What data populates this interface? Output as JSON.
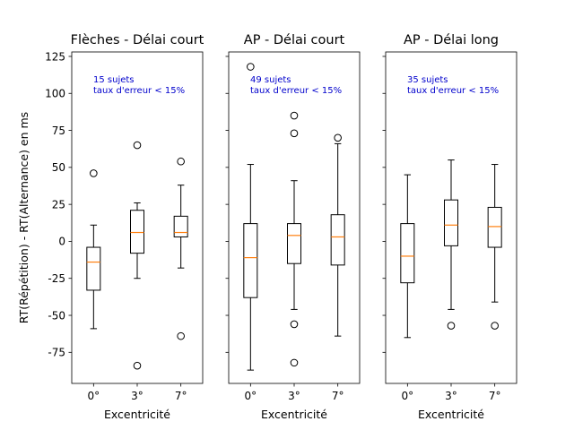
{
  "figure": {
    "ylabel": "RT(Répétition) - RT(Alternance) en ms",
    "annotation_color": "#0000cc",
    "median_color": "#ff7f0e",
    "box_color": "#000000"
  },
  "chart_data": [
    {
      "type": "boxplot",
      "title": "Flèches - Délai court",
      "xlabel": "Excentricité",
      "ylabel": "RT(Répétition) - RT(Alternance) en ms",
      "categories": [
        "0°",
        "3°",
        "7°"
      ],
      "ylim": [
        -96,
        128
      ],
      "yticks": [
        -75,
        -50,
        -25,
        0,
        25,
        50,
        75,
        100,
        125
      ],
      "annotation": [
        "15 sujets",
        "taux d'erreur < 15%"
      ],
      "boxes": [
        {
          "category": "0°",
          "whisker_low": -59,
          "q1": -33,
          "median": -14,
          "q3": -4,
          "whisker_high": 11,
          "outliers": [
            46
          ]
        },
        {
          "category": "3°",
          "whisker_low": -25,
          "q1": -8,
          "median": 6,
          "q3": 21,
          "whisker_high": 26,
          "outliers": [
            65,
            -84
          ]
        },
        {
          "category": "7°",
          "whisker_low": -18,
          "q1": 3,
          "median": 6,
          "q3": 17,
          "whisker_high": 38,
          "outliers": [
            54,
            -64
          ]
        }
      ]
    },
    {
      "type": "boxplot",
      "title": "AP - Délai court",
      "xlabel": "Excentricité",
      "categories": [
        "0°",
        "3°",
        "7°"
      ],
      "ylim": [
        -96,
        128
      ],
      "annotation": [
        "49 sujets",
        "taux d'erreur < 15%"
      ],
      "boxes": [
        {
          "category": "0°",
          "whisker_low": -87,
          "q1": -38,
          "median": -11,
          "q3": 12,
          "whisker_high": 52,
          "outliers": [
            118
          ]
        },
        {
          "category": "3°",
          "whisker_low": -46,
          "q1": -15,
          "median": 4,
          "q3": 12,
          "whisker_high": 41,
          "outliers": [
            85,
            73,
            -56,
            -82
          ]
        },
        {
          "category": "7°",
          "whisker_low": -64,
          "q1": -16,
          "median": 3,
          "q3": 18,
          "whisker_high": 66,
          "outliers": [
            70
          ]
        }
      ]
    },
    {
      "type": "boxplot",
      "title": "AP - Délai long",
      "xlabel": "Excentricité",
      "categories": [
        "0°",
        "3°",
        "7°"
      ],
      "ylim": [
        -96,
        128
      ],
      "annotation": [
        "35 sujets",
        "taux d'erreur < 15%"
      ],
      "boxes": [
        {
          "category": "0°",
          "whisker_low": -65,
          "q1": -28,
          "median": -10,
          "q3": 12,
          "whisker_high": 45,
          "outliers": []
        },
        {
          "category": "3°",
          "whisker_low": -46,
          "q1": -3,
          "median": 11,
          "q3": 28,
          "whisker_high": 55,
          "outliers": [
            -57
          ]
        },
        {
          "category": "7°",
          "whisker_low": -41,
          "q1": -4,
          "median": 10,
          "q3": 23,
          "whisker_high": 52,
          "outliers": [
            -57
          ]
        }
      ]
    }
  ]
}
